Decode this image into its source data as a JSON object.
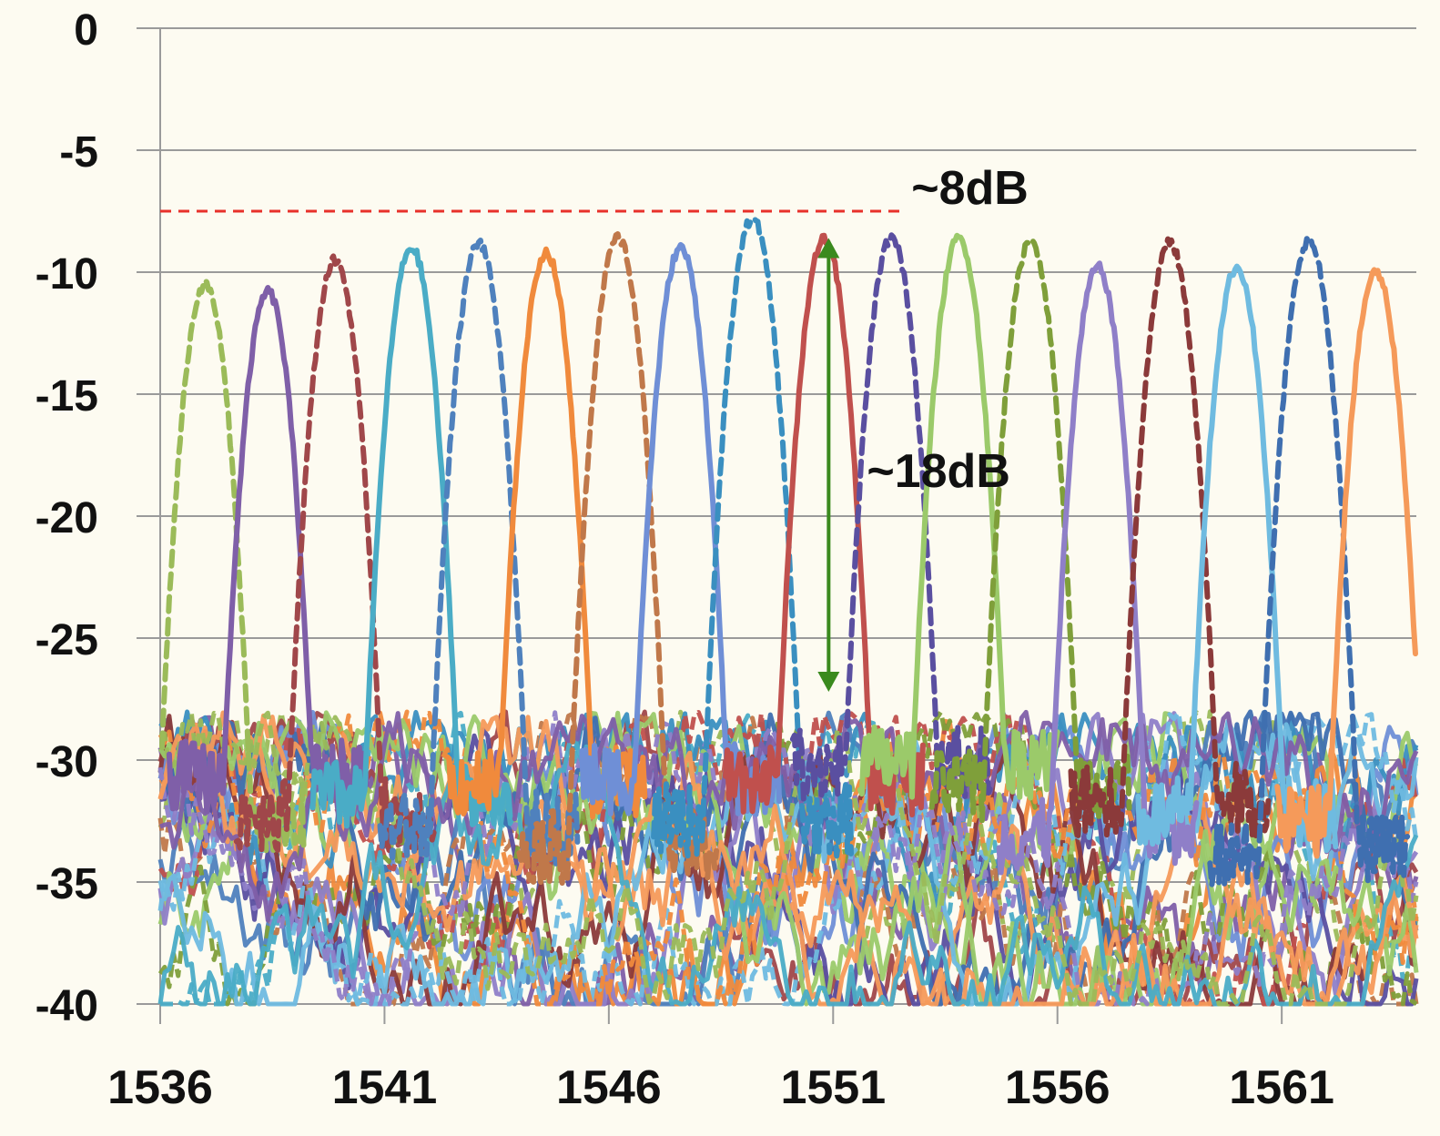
{
  "chart_data": {
    "type": "line",
    "title": "",
    "xlabel": "",
    "ylabel": "",
    "xlim": [
      1536,
      1564
    ],
    "ylim": [
      -40,
      0
    ],
    "x_ticks": [
      1536,
      1541,
      1546,
      1551,
      1556,
      1561
    ],
    "x_tick_labels": [
      "1536",
      "1541",
      "1546",
      "1551",
      "1556",
      "1561"
    ],
    "y_ticks": [
      0,
      -5,
      -10,
      -15,
      -20,
      -25,
      -30,
      -35,
      -40
    ],
    "y_tick_labels": [
      "0",
      "-5",
      "-10",
      "-15",
      "-20",
      "-25",
      "-30",
      "-35",
      "-40"
    ],
    "grid": "horizontal",
    "legend": "none",
    "noise_floor_range": [
      -40,
      -28
    ],
    "series": [
      {
        "style": "dashed",
        "color": "#9bbb59",
        "peak_x": 1537.0,
        "peak_y": -10.5
      },
      {
        "style": "solid",
        "color": "#7f5fa8",
        "peak_x": 1538.4,
        "peak_y": -10.8
      },
      {
        "style": "dashed",
        "color": "#a0474a",
        "peak_x": 1539.9,
        "peak_y": -9.5
      },
      {
        "style": "solid",
        "color": "#4aacc6",
        "peak_x": 1541.6,
        "peak_y": -9.0
      },
      {
        "style": "dashed",
        "color": "#4f81bd",
        "peak_x": 1543.1,
        "peak_y": -8.8
      },
      {
        "style": "solid",
        "color": "#f08a3c",
        "peak_x": 1544.6,
        "peak_y": -9.2
      },
      {
        "style": "dashed",
        "color": "#c0784a",
        "peak_x": 1546.2,
        "peak_y": -8.6
      },
      {
        "style": "solid",
        "color": "#6f8fd6",
        "peak_x": 1547.6,
        "peak_y": -9.0
      },
      {
        "style": "dashed",
        "color": "#3a8fc0",
        "peak_x": 1549.2,
        "peak_y": -7.8
      },
      {
        "style": "solid",
        "color": "#c0504d",
        "peak_x": 1550.8,
        "peak_y": -8.6
      },
      {
        "style": "dashed",
        "color": "#5a4fa0",
        "peak_x": 1552.3,
        "peak_y": -8.6
      },
      {
        "style": "solid",
        "color": "#9bca6a",
        "peak_x": 1553.8,
        "peak_y": -8.6
      },
      {
        "style": "dashed",
        "color": "#7f9f3a",
        "peak_x": 1555.4,
        "peak_y": -8.7
      },
      {
        "style": "solid",
        "color": "#8f7fc8",
        "peak_x": 1556.9,
        "peak_y": -9.8
      },
      {
        "style": "dashed",
        "color": "#8b3a3a",
        "peak_x": 1558.5,
        "peak_y": -8.8
      },
      {
        "style": "solid",
        "color": "#6fbbe0",
        "peak_x": 1560.0,
        "peak_y": -9.8
      },
      {
        "style": "dashed",
        "color": "#3f6fb0",
        "peak_x": 1561.6,
        "peak_y": -8.7
      },
      {
        "style": "solid",
        "color": "#f59a5a",
        "peak_x": 1563.1,
        "peak_y": -10.0
      }
    ],
    "annotations": [
      {
        "text": "~8dB",
        "type": "dashed-reference-line",
        "y": -7.5,
        "x_from": 1536,
        "x_to": 1552.5,
        "color": "#e8302a"
      },
      {
        "text": "~18dB",
        "type": "double-arrow",
        "x": 1550.9,
        "y_from": -8.6,
        "y_to": -27.2,
        "color": "#3a8a1e"
      }
    ]
  }
}
